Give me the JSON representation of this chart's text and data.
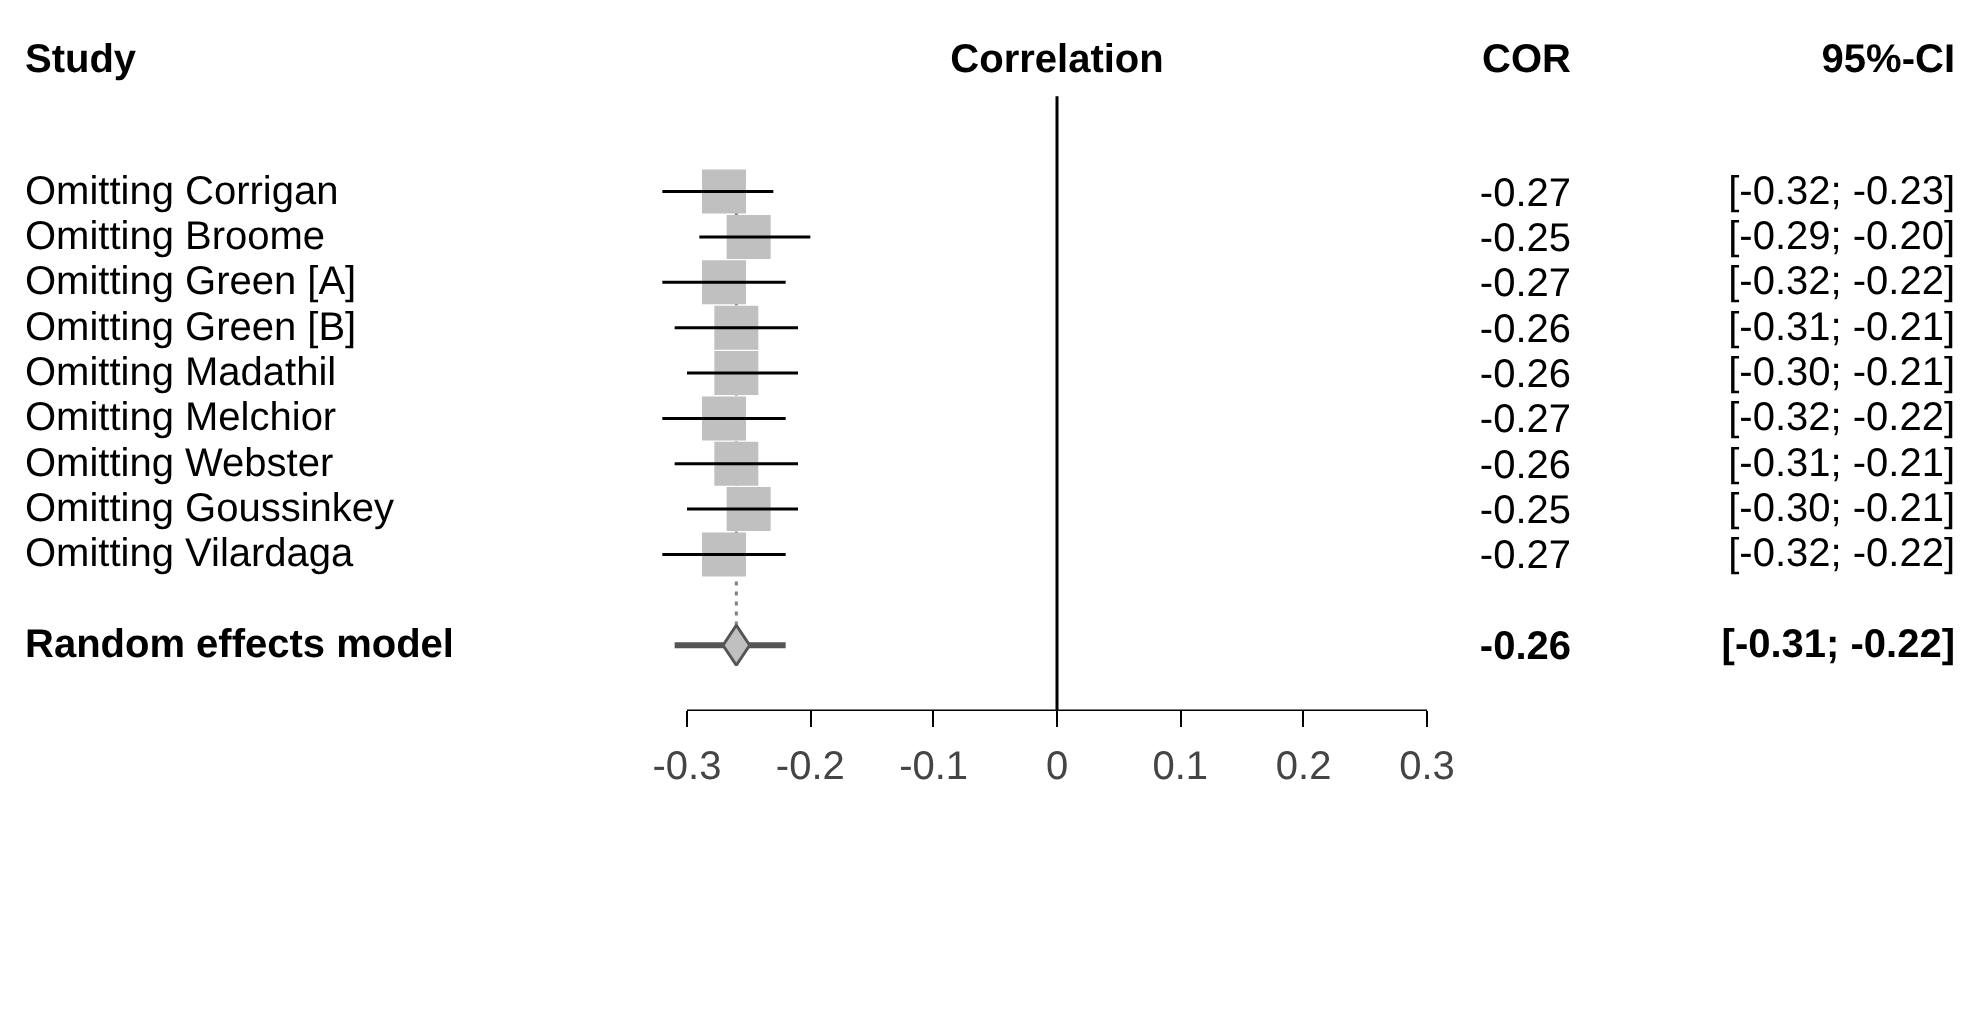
{
  "chart_data": {
    "type": "scatter",
    "orientation": "horizontal",
    "xlabel": "Correlation",
    "ylabel": "Study",
    "annotations": [
      "COR",
      "95%-CI"
    ],
    "categories": [
      "Omitting Corrigan",
      "Omitting Broome",
      "Omitting Green [A]",
      "Omitting Green [B]",
      "Omitting Madathil",
      "Omitting Melchior",
      "Omitting Webster",
      "Omitting Goussinkey",
      "Omitting Vilardaga",
      null,
      "Random effects model"
    ],
    "series": [
      {
        "color": "#c0c0c0",
        "marker": "square",
        "values": [
          -0.27,
          -0.25,
          -0.27,
          -0.26,
          -0.26,
          -0.27,
          -0.26,
          -0.25,
          -0.27,
          null,
          null
        ],
        "errors": [
          [
            -0.32,
            -0.23
          ],
          [
            -0.29,
            -0.2
          ],
          [
            -0.32,
            -0.22
          ],
          [
            -0.31,
            -0.21
          ],
          [
            -0.3,
            -0.21
          ],
          [
            -0.32,
            -0.22
          ],
          [
            -0.31,
            -0.21
          ],
          [
            -0.3,
            -0.21
          ],
          [
            -0.32,
            -0.22
          ],
          null,
          null
        ],
        "value_labels": [
          "-0.27 [-0.32; -0.23]",
          "-0.25 [-0.29; -0.20]",
          "-0.27 [-0.32; -0.22]",
          "-0.26 [-0.31; -0.21]",
          "-0.26 [-0.30; -0.21]",
          "-0.27 [-0.32; -0.22]",
          "-0.26 [-0.31; -0.21]",
          "-0.25 [-0.30; -0.21]",
          "-0.27 [-0.32; -0.22]",
          null,
          null
        ]
      },
      {
        "color": "#c0c0c0",
        "marker": "diamond",
        "values": [
          null,
          null,
          null,
          null,
          null,
          null,
          null,
          null,
          null,
          null,
          -0.26
        ],
        "errors": [
          null,
          null,
          null,
          null,
          null,
          null,
          null,
          null,
          null,
          null,
          [
            -0.31,
            -0.22
          ]
        ],
        "value_labels": [
          null,
          null,
          null,
          null,
          null,
          null,
          null,
          null,
          null,
          null,
          "-0.26 [-0.31; -0.22]"
        ]
      }
    ],
    "ref_lines": [
      {
        "axis": "x",
        "value": 0,
        "color": "#000000",
        "line_style": "solid"
      },
      {
        "axis": "x",
        "value": -0.26,
        "color": "#808080",
        "line_style": "dotted"
      }
    ],
    "xlim": [
      -0.3,
      0.3
    ],
    "xticks": [
      -0.3,
      -0.2,
      -0.1,
      0,
      0.1,
      0.2,
      0.3
    ],
    "grid": false
  }
}
